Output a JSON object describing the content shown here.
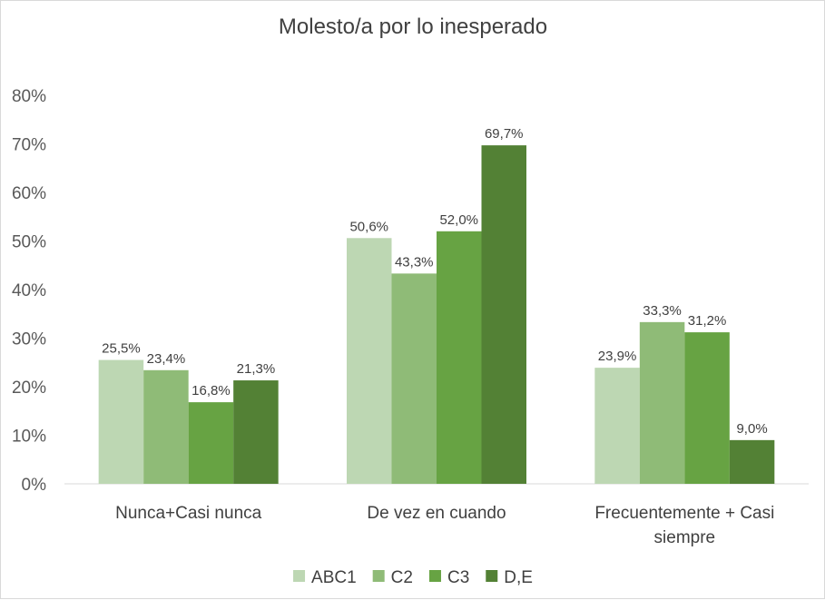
{
  "chart_data": {
    "type": "bar",
    "title": "Molesto/a por lo inesperado",
    "categories": [
      [
        "Nunca+Casi nunca"
      ],
      [
        "De vez en cuando"
      ],
      [
        "Frecuentemente + Casi",
        "siempre"
      ]
    ],
    "series": [
      {
        "name": "ABC1",
        "color": "#bdd7b3",
        "values": [
          25.5,
          50.6,
          23.9
        ],
        "labels": [
          "25,5%",
          "50,6%",
          "23,9%"
        ]
      },
      {
        "name": "C2",
        "color": "#8fbb77",
        "values": [
          23.4,
          43.3,
          33.3
        ],
        "labels": [
          "23,4%",
          "43,3%",
          "33,3%"
        ]
      },
      {
        "name": "C3",
        "color": "#67a343",
        "values": [
          16.8,
          52.0,
          31.2
        ],
        "labels": [
          "16,8%",
          "52,0%",
          "31,2%"
        ]
      },
      {
        "name": "D,E",
        "color": "#538135",
        "values": [
          21.3,
          69.7,
          9.0
        ],
        "labels": [
          "21,3%",
          "69,7%",
          "9,0%"
        ]
      }
    ],
    "ylim": [
      0,
      80
    ],
    "yticks": [
      "0%",
      "10%",
      "20%",
      "30%",
      "40%",
      "50%",
      "60%",
      "70%",
      "80%"
    ],
    "grid": false,
    "legend_position": "bottom"
  }
}
